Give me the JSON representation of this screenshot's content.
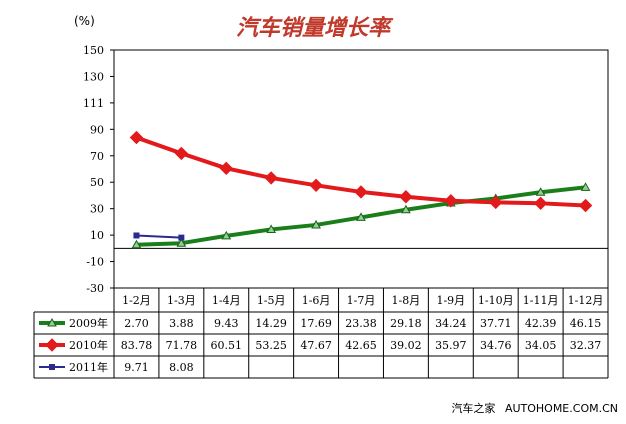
{
  "title": "汽车销量增长率",
  "unit_label": "(%)",
  "footer": {
    "brand": "汽车之家",
    "site": "AUTOHOME.COM.CN"
  },
  "chart_data": {
    "type": "line",
    "title": "汽车销量增长率",
    "ylabel": "(%)",
    "ylim": [
      -30,
      150
    ],
    "yticks": [
      150,
      130,
      111,
      90,
      70,
      50,
      30,
      10,
      -10,
      -30
    ],
    "categories": [
      "1-2月",
      "1-3月",
      "1-4月",
      "1-5月",
      "1-6月",
      "1-7月",
      "1-8月",
      "1-9月",
      "1-10月",
      "1-11月",
      "1-12月"
    ],
    "grid": false,
    "legend": "data-table-left",
    "series": [
      {
        "name": "2009年",
        "color": "#1a7f1a",
        "marker": "triangle",
        "values": [
          2.7,
          3.88,
          9.43,
          14.29,
          17.69,
          23.38,
          29.18,
          34.24,
          37.71,
          42.39,
          46.15
        ],
        "labels": [
          "2.70",
          "3.88",
          "9.43",
          "14.29",
          "17.69",
          "23.38",
          "29.18",
          "34.24",
          "37.71",
          "42.39",
          "46.15"
        ]
      },
      {
        "name": "2010年",
        "color": "#e31a1c",
        "marker": "diamond",
        "values": [
          83.78,
          71.78,
          60.51,
          53.25,
          47.67,
          42.65,
          39.02,
          35.97,
          34.76,
          34.05,
          32.37
        ],
        "labels": [
          "83.78",
          "71.78",
          "60.51",
          "53.25",
          "47.67",
          "42.65",
          "39.02",
          "35.97",
          "34.76",
          "34.05",
          "32.37"
        ]
      },
      {
        "name": "2011年",
        "color": "#2b2b8f",
        "marker": "square",
        "values": [
          9.71,
          8.08,
          null,
          null,
          null,
          null,
          null,
          null,
          null,
          null,
          null
        ],
        "labels": [
          "9.71",
          "8.08",
          "",
          "",
          "",
          "",
          "",
          "",
          "",
          "",
          ""
        ]
      }
    ]
  }
}
